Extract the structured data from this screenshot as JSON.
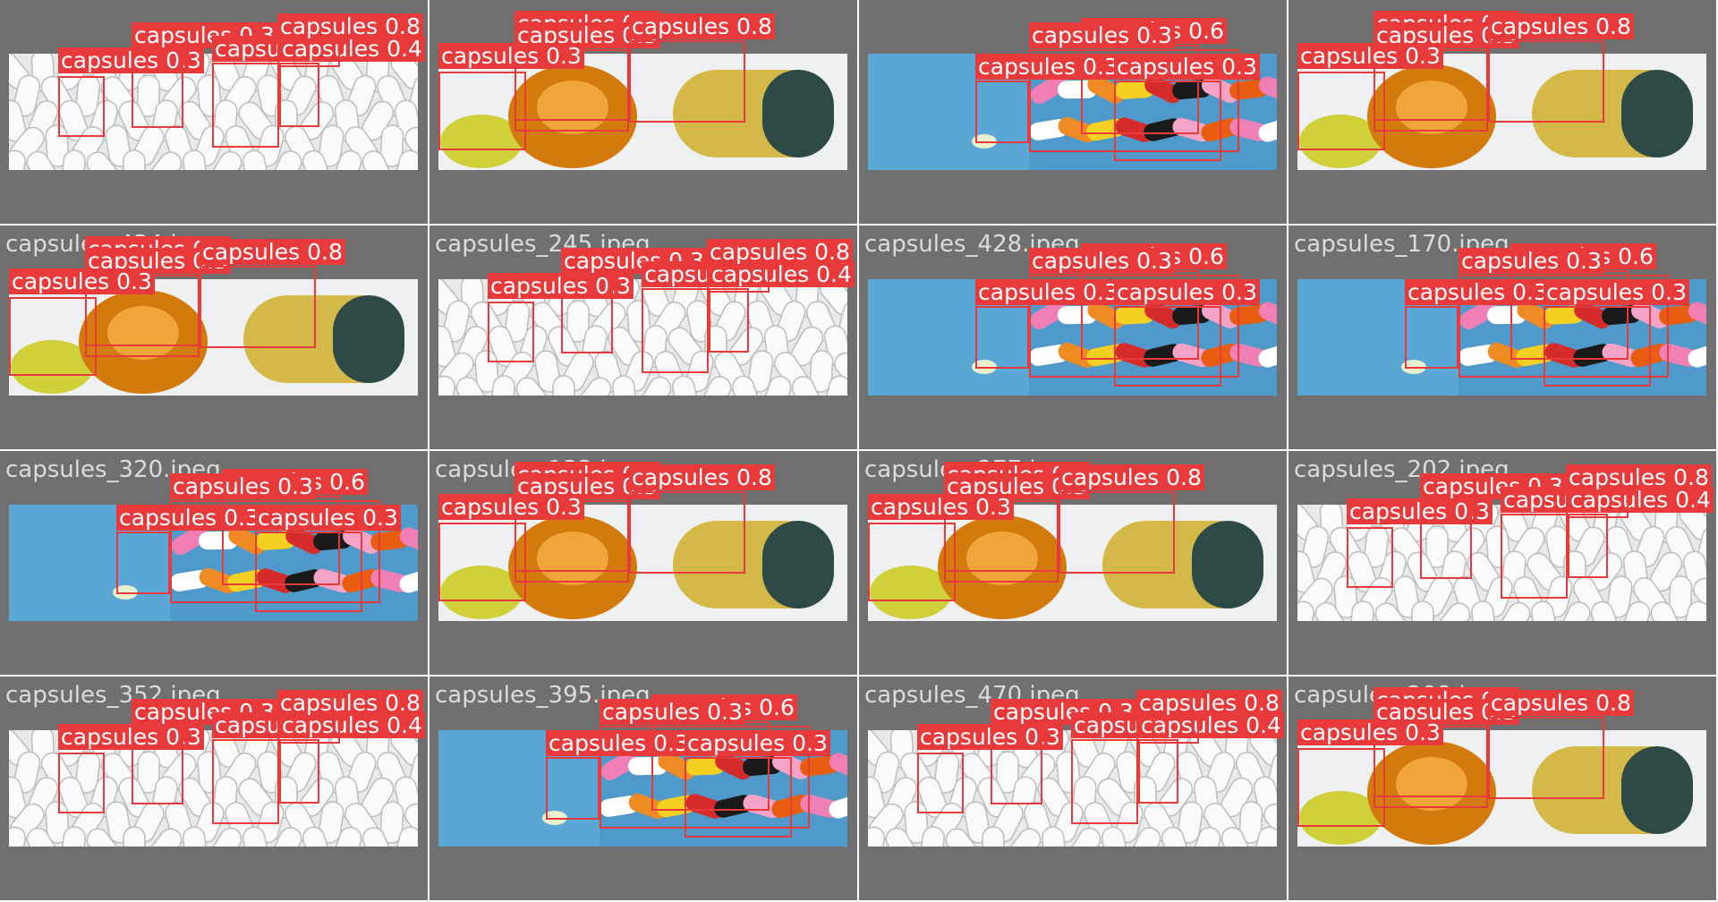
{
  "grid": {
    "tiles": [
      {
        "filename": "",
        "scene": "white",
        "detections": [
          [
            "capsules",
            0.3
          ],
          [
            "capsules",
            0.3
          ],
          [
            "capsules",
            0.3
          ],
          [
            "capsules",
            0.4
          ],
          [
            "capsules",
            0.8
          ]
        ]
      },
      {
        "filename": "",
        "scene": "mixed",
        "detections": [
          [
            "capsules",
            0.6
          ],
          [
            "capsules",
            0.3
          ],
          [
            "capsules",
            0.8
          ],
          [
            "capsules",
            0.3
          ]
        ]
      },
      {
        "filename": "",
        "scene": "blue",
        "detections": [
          [
            "capsules",
            0.6
          ],
          [
            "capsules",
            0.3
          ],
          [
            "capsules",
            0.3
          ],
          [
            "capsules",
            0.3
          ]
        ]
      },
      {
        "filename": "",
        "scene": "mixed",
        "detections": [
          [
            "capsules",
            0.6
          ],
          [
            "capsules",
            0.3
          ],
          [
            "capsules",
            0.8
          ],
          [
            "capsules",
            0.3
          ]
        ]
      },
      {
        "filename": "capsules_434.jpeg",
        "scene": "mixed",
        "detections": [
          [
            "capsules",
            0.6
          ],
          [
            "capsules",
            0.3
          ],
          [
            "capsules",
            0.8
          ],
          [
            "capsules",
            0.3
          ]
        ]
      },
      {
        "filename": "capsules_245.jpeg",
        "scene": "white",
        "detections": [
          [
            "capsules",
            0.3
          ],
          [
            "capsules",
            0.3
          ],
          [
            "capsules",
            0.3
          ],
          [
            "capsules",
            0.4
          ],
          [
            "capsules",
            0.8
          ]
        ]
      },
      {
        "filename": "capsules_428.jpeg",
        "scene": "blue",
        "detections": [
          [
            "capsules",
            0.6
          ],
          [
            "capsules",
            0.3
          ],
          [
            "capsules",
            0.3
          ],
          [
            "capsules",
            0.3
          ]
        ]
      },
      {
        "filename": "capsules_170.jpeg",
        "scene": "blue",
        "detections": [
          [
            "capsules",
            0.6
          ],
          [
            "capsules",
            0.3
          ],
          [
            "capsules",
            0.3
          ],
          [
            "capsules",
            0.3
          ]
        ]
      },
      {
        "filename": "capsules_320.jpeg",
        "scene": "blue",
        "detections": [
          [
            "capsules",
            0.6
          ],
          [
            "capsules",
            0.3
          ],
          [
            "capsules",
            0.3
          ],
          [
            "capsules",
            0.3
          ]
        ]
      },
      {
        "filename": "capsules_133.jpeg",
        "scene": "mixed",
        "detections": [
          [
            "capsules",
            0.6
          ],
          [
            "capsules",
            0.3
          ],
          [
            "capsules",
            0.8
          ],
          [
            "capsules",
            0.3
          ]
        ]
      },
      {
        "filename": "capsules_277.jpeg",
        "scene": "mixed",
        "detections": [
          [
            "capsules",
            0.6
          ],
          [
            "capsules",
            0.3
          ],
          [
            "capsules",
            0.8
          ],
          [
            "capsules",
            0.3
          ]
        ]
      },
      {
        "filename": "capsules_202.jpeg",
        "scene": "white",
        "detections": [
          [
            "capsules",
            0.3
          ],
          [
            "capsules",
            0.3
          ],
          [
            "capsules",
            0.3
          ],
          [
            "capsules",
            0.4
          ],
          [
            "capsules",
            0.8
          ]
        ]
      },
      {
        "filename": "capsules_352.jpeg",
        "scene": "white",
        "detections": [
          [
            "capsules",
            0.3
          ],
          [
            "capsules",
            0.3
          ],
          [
            "capsules",
            0.3
          ],
          [
            "capsules",
            0.4
          ],
          [
            "capsules",
            0.8
          ]
        ]
      },
      {
        "filename": "capsules_395.jpeg",
        "scene": "blue",
        "detections": [
          [
            "capsules",
            0.6
          ],
          [
            "capsules",
            0.3
          ],
          [
            "capsules",
            0.3
          ],
          [
            "capsules",
            0.3
          ]
        ]
      },
      {
        "filename": "capsules_470.jpeg",
        "scene": "white",
        "detections": [
          [
            "capsules",
            0.3
          ],
          [
            "capsules",
            0.3
          ],
          [
            "capsules",
            0.3
          ],
          [
            "capsules",
            0.4
          ],
          [
            "capsules",
            0.8
          ]
        ]
      },
      {
        "filename": "capsules_208.jpeg",
        "scene": "mixed",
        "detections": [
          [
            "capsules",
            0.6
          ],
          [
            "capsules",
            0.3
          ],
          [
            "capsules",
            0.8
          ],
          [
            "capsules",
            0.3
          ]
        ]
      }
    ]
  },
  "colors": {
    "tile_bg": "#707070",
    "box": "#e8393b",
    "filename_text": "#dcdcdc"
  }
}
